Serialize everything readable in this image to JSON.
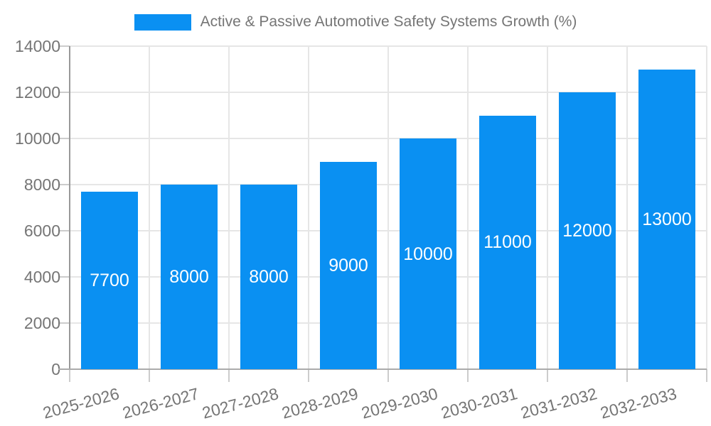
{
  "chart_data": {
    "type": "bar",
    "title": "Active & Passive Automotive Safety Systems Growth (%)",
    "legend_label": "Active & Passive Automotive Safety Systems Growth (%)",
    "legend_position": "top",
    "categories": [
      "2025-2026",
      "2026-2027",
      "2027-2028",
      "2028-2029",
      "2029-2030",
      "2030-2031",
      "2031-2032",
      "2032-2033"
    ],
    "values": [
      7700,
      8000,
      8000,
      9000,
      10000,
      11000,
      12000,
      13000
    ],
    "value_labels": [
      "7700",
      "8000",
      "8000",
      "9000",
      "10000",
      "11000",
      "12000",
      "13000"
    ],
    "xlabel": "",
    "ylabel": "",
    "ylim": [
      0,
      14000
    ],
    "ytick_interval": 2000,
    "yticks": [
      0,
      2000,
      4000,
      6000,
      8000,
      10000,
      12000,
      14000
    ],
    "grid": true,
    "colors": {
      "bar": "#0A90F2",
      "value_label": "#ffffff",
      "axis_text": "#757575",
      "legend_text": "#757575",
      "gridline": "#e6e6e6",
      "axis_line": "#ababab",
      "tick": "#cccccc",
      "background": "#ffffff"
    }
  }
}
